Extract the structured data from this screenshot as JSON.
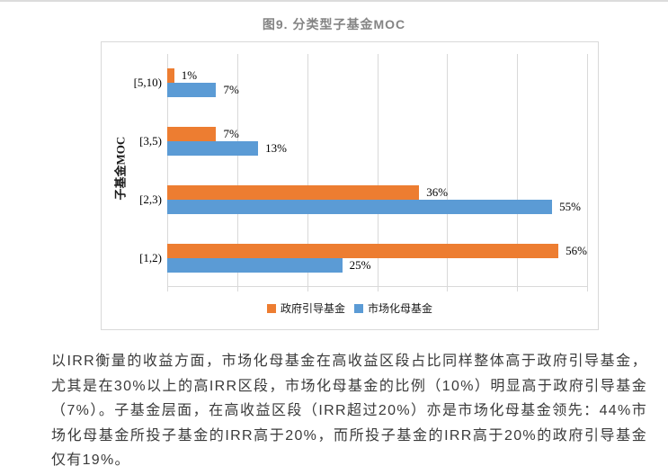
{
  "page": {
    "title": "图9. 分类型子基金MOC"
  },
  "chart_data": {
    "type": "bar",
    "orientation": "horizontal",
    "title": "图9. 分类型子基金MOC",
    "ylabel": "子基金MOC",
    "xlabel": "",
    "categories": [
      "[5,10)",
      "[3,5)",
      "[2,3)",
      "[1,2)"
    ],
    "categories_order": "top-to-bottom",
    "series": [
      {
        "name": "政府引导基金",
        "color": "#ED7D31",
        "values": [
          1,
          7,
          36,
          56
        ],
        "labels": [
          "1%",
          "7%",
          "36%",
          "56%"
        ]
      },
      {
        "name": "市场化母基金",
        "color": "#5B9BD5",
        "values": [
          7,
          13,
          55,
          25
        ],
        "labels": [
          "7%",
          "13%",
          "55%",
          "25%"
        ]
      }
    ],
    "xlim": [
      0,
      60
    ],
    "grid_step": 10,
    "grid": "on",
    "axis_tick_labels_visible": false,
    "legend_position": "bottom",
    "gridline_color": "#D9D9D9"
  },
  "body_text": {
    "paragraph": "以IRR衡量的收益方面，市场化母基金在高收益区段占比同样整体高于政府引导基金，尤其是在30%以上的高IRR区段，市场化母基金的比例（10%）明显高于政府引导基金（7%）。子基金层面，在高收益区段（IRR超过20%）亦是市场化母基金领先：44%市场化母基金所投子基金的IRR高于20%，而所投子基金的IRR高于20%的政府引导基金仅有19%。"
  }
}
